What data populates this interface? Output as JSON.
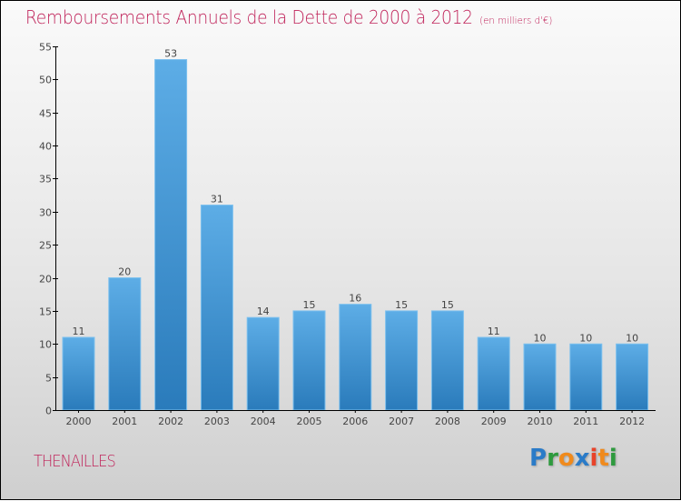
{
  "chart_data": {
    "type": "bar",
    "title": "Remboursements Annuels de la Dette de 2000 à 2012",
    "subtitle": "(en milliers d'€)",
    "xlabel": "",
    "ylabel": "",
    "categories": [
      "2000",
      "2001",
      "2002",
      "2003",
      "2004",
      "2005",
      "2006",
      "2007",
      "2008",
      "2009",
      "2010",
      "2011",
      "2012"
    ],
    "values": [
      11,
      20,
      53,
      31,
      14,
      15,
      16,
      15,
      15,
      11,
      10,
      10,
      10
    ],
    "data_labels": [
      "11",
      "20",
      "53",
      "31",
      "14",
      "15",
      "16",
      "15",
      "15",
      "11",
      "10",
      "10",
      "10"
    ],
    "ylim": [
      0,
      55
    ],
    "yticks": [
      0,
      5,
      10,
      15,
      20,
      25,
      30,
      35,
      40,
      45,
      50,
      55
    ],
    "grid": false,
    "legend": "none",
    "bar_color_top": "#5dade6",
    "bar_color_bottom": "#2a7bbb"
  },
  "footer": {
    "commune": "THENAILLES",
    "logo": [
      "P",
      "r",
      "o",
      "x",
      "i",
      "t",
      "i"
    ],
    "logo_colors": [
      "#2a7bc8",
      "#2e9a3e",
      "#f08a1c",
      "#2a7bc8",
      "#e8432a",
      "#f08a1c",
      "#2e9a3e"
    ]
  },
  "colors": {
    "title": "#c0235a",
    "axis": "#000000"
  }
}
